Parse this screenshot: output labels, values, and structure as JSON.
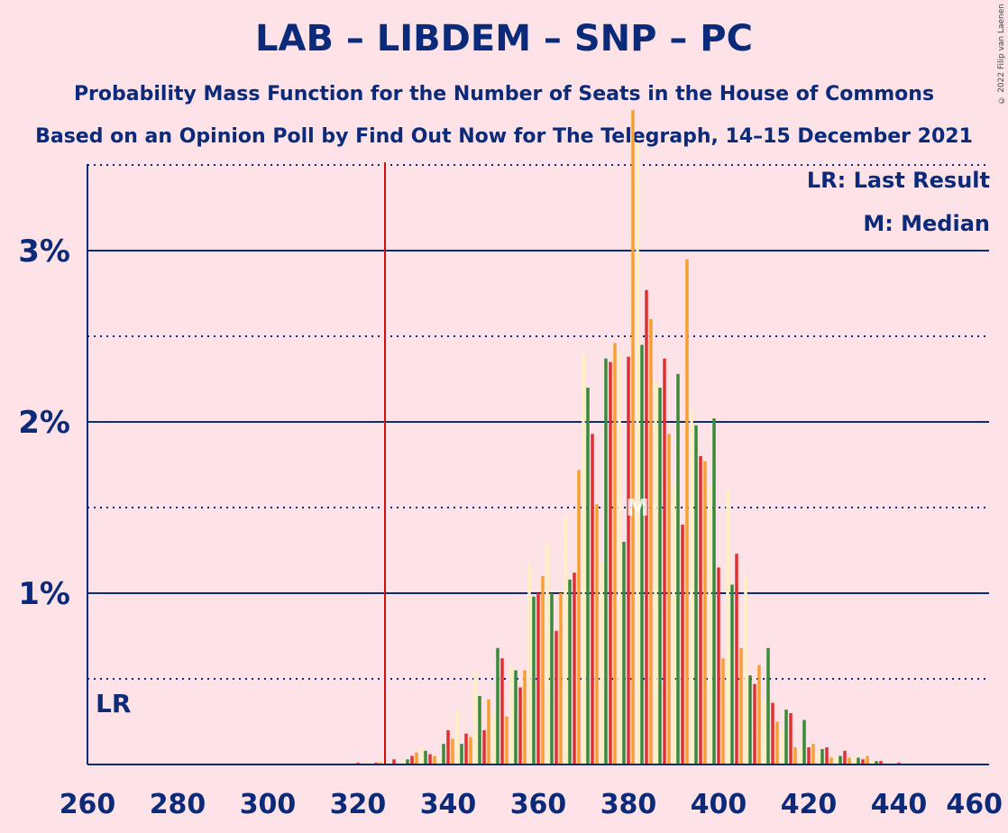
{
  "chart_data": {
    "type": "bar",
    "title": "LAB – LIBDEM – SNP – PC",
    "subtitle": "Probability Mass Function for the Number of Seats in the House of Commons",
    "subtitle2": "Based on an Opinion Poll by Find Out Now for The Telegraph, 14–15 December 2021",
    "copyright": "© 2022 Filip van Laenen",
    "legend": {
      "lr": "LR: Last Result",
      "m": "M: Median",
      "placement": "top-right"
    },
    "last_result": {
      "x": 326,
      "label": "LR"
    },
    "median": {
      "x": 382,
      "label": "M"
    },
    "xlim": [
      260,
      460
    ],
    "ylim": [
      0,
      4.2
    ],
    "x_ticks": [
      260,
      280,
      300,
      320,
      340,
      360,
      380,
      400,
      420,
      440,
      460
    ],
    "y_ticks": [
      {
        "value": 1,
        "label": "1%"
      },
      {
        "value": 2,
        "label": "2%"
      },
      {
        "value": 3,
        "label": "3%"
      }
    ],
    "y_dotted": [
      0.5,
      1.5,
      2.5,
      3.5
    ],
    "grid": true,
    "series_colors": [
      "#e03030",
      "#f5a030",
      "#fff0c0",
      "#3a8a3a"
    ],
    "points": [
      [
        320,
        0.01
      ],
      [
        322,
        0.01
      ],
      [
        324,
        0.01
      ],
      [
        325,
        0.01
      ],
      [
        326,
        0.02
      ],
      [
        328,
        0.03
      ],
      [
        330,
        0.02
      ],
      [
        331,
        0.03
      ],
      [
        332,
        0.05
      ],
      [
        333,
        0.07
      ],
      [
        334,
        0.1
      ],
      [
        335,
        0.08
      ],
      [
        336,
        0.06
      ],
      [
        337,
        0.05
      ],
      [
        338,
        0.04
      ],
      [
        339,
        0.12
      ],
      [
        340,
        0.2
      ],
      [
        341,
        0.15
      ],
      [
        342,
        0.32
      ],
      [
        343,
        0.12
      ],
      [
        344,
        0.18
      ],
      [
        345,
        0.16
      ],
      [
        346,
        0.54
      ],
      [
        347,
        0.4
      ],
      [
        348,
        0.2
      ],
      [
        349,
        0.38
      ],
      [
        350,
        0.3
      ],
      [
        351,
        0.68
      ],
      [
        352,
        0.62
      ],
      [
        353,
        0.28
      ],
      [
        354,
        0.58
      ],
      [
        355,
        0.55
      ],
      [
        356,
        0.45
      ],
      [
        357,
        0.55
      ],
      [
        358,
        1.17
      ],
      [
        359,
        0.98
      ],
      [
        360,
        1.0
      ],
      [
        361,
        1.1
      ],
      [
        362,
        1.3
      ],
      [
        363,
        1.0
      ],
      [
        364,
        0.78
      ],
      [
        365,
        1.0
      ],
      [
        366,
        1.45
      ],
      [
        367,
        1.08
      ],
      [
        368,
        1.12
      ],
      [
        369,
        1.72
      ],
      [
        370,
        2.4
      ],
      [
        371,
        2.2
      ],
      [
        372,
        1.93
      ],
      [
        373,
        1.52
      ],
      [
        374,
        1.18
      ],
      [
        375,
        2.37
      ],
      [
        376,
        2.35
      ],
      [
        377,
        2.46
      ],
      [
        378,
        2.4
      ],
      [
        379,
        1.3
      ],
      [
        380,
        2.38
      ],
      [
        381,
        3.82
      ],
      [
        382,
        3.63
      ],
      [
        383,
        2.45
      ],
      [
        384,
        2.77
      ],
      [
        385,
        2.6
      ],
      [
        386,
        2.24
      ],
      [
        387,
        2.2
      ],
      [
        388,
        2.37
      ],
      [
        389,
        1.93
      ],
      [
        390,
        1.63
      ],
      [
        391,
        2.28
      ],
      [
        392,
        1.4
      ],
      [
        393,
        2.95
      ],
      [
        394,
        2.07
      ],
      [
        395,
        1.98
      ],
      [
        396,
        1.8
      ],
      [
        397,
        1.77
      ],
      [
        398,
        1.63
      ],
      [
        399,
        2.02
      ],
      [
        400,
        1.15
      ],
      [
        401,
        0.62
      ],
      [
        402,
        1.6
      ],
      [
        403,
        1.05
      ],
      [
        404,
        1.23
      ],
      [
        405,
        0.68
      ],
      [
        406,
        1.1
      ],
      [
        407,
        0.52
      ],
      [
        408,
        0.47
      ],
      [
        409,
        0.58
      ],
      [
        410,
        0.38
      ],
      [
        411,
        0.68
      ],
      [
        412,
        0.36
      ],
      [
        413,
        0.25
      ],
      [
        414,
        0.2
      ],
      [
        415,
        0.32
      ],
      [
        416,
        0.3
      ],
      [
        417,
        0.1
      ],
      [
        418,
        0.1
      ],
      [
        419,
        0.26
      ],
      [
        420,
        0.1
      ],
      [
        421,
        0.12
      ],
      [
        422,
        0.07
      ],
      [
        423,
        0.09
      ],
      [
        424,
        0.1
      ],
      [
        425,
        0.04
      ],
      [
        426,
        0.05
      ],
      [
        427,
        0.05
      ],
      [
        428,
        0.08
      ],
      [
        429,
        0.04
      ],
      [
        430,
        0.04
      ],
      [
        431,
        0.04
      ],
      [
        432,
        0.03
      ],
      [
        433,
        0.05
      ],
      [
        434,
        0.02
      ],
      [
        435,
        0.02
      ],
      [
        436,
        0.02
      ],
      [
        438,
        0.01
      ],
      [
        440,
        0.01
      ],
      [
        442,
        0.01
      ]
    ]
  }
}
